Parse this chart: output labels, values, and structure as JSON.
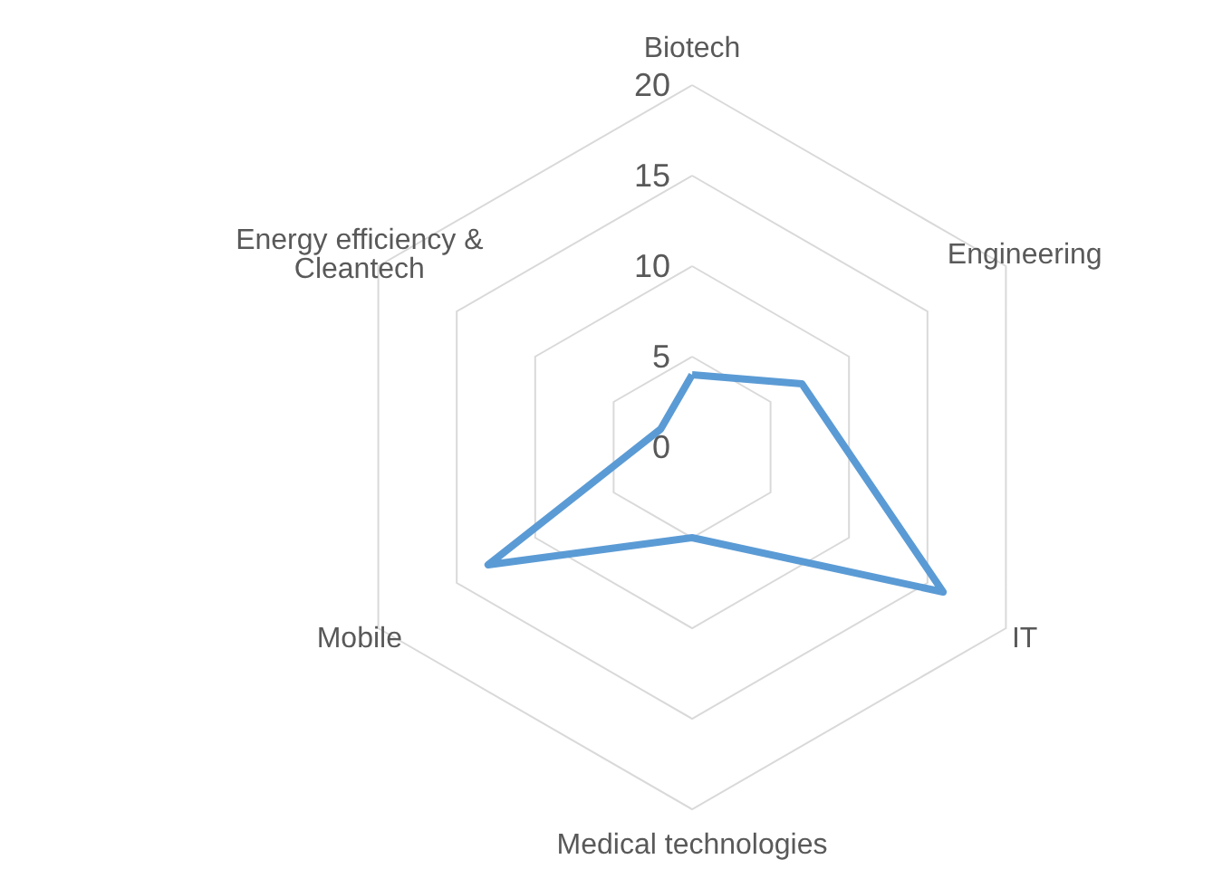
{
  "chart_data": {
    "type": "radar",
    "categories": [
      "Biotech",
      "Engineering",
      "IT",
      "Medical technologies",
      "Mobile",
      "Energy efficiency & Cleantech"
    ],
    "series": [
      {
        "color": "#5b9bd5",
        "values": [
          4,
          7,
          16,
          5,
          13,
          2
        ]
      }
    ],
    "ylim": [
      0,
      20
    ],
    "yticks": [
      0,
      5,
      10,
      15,
      20
    ],
    "grid": true,
    "marker": "none",
    "line_style": "solid"
  }
}
